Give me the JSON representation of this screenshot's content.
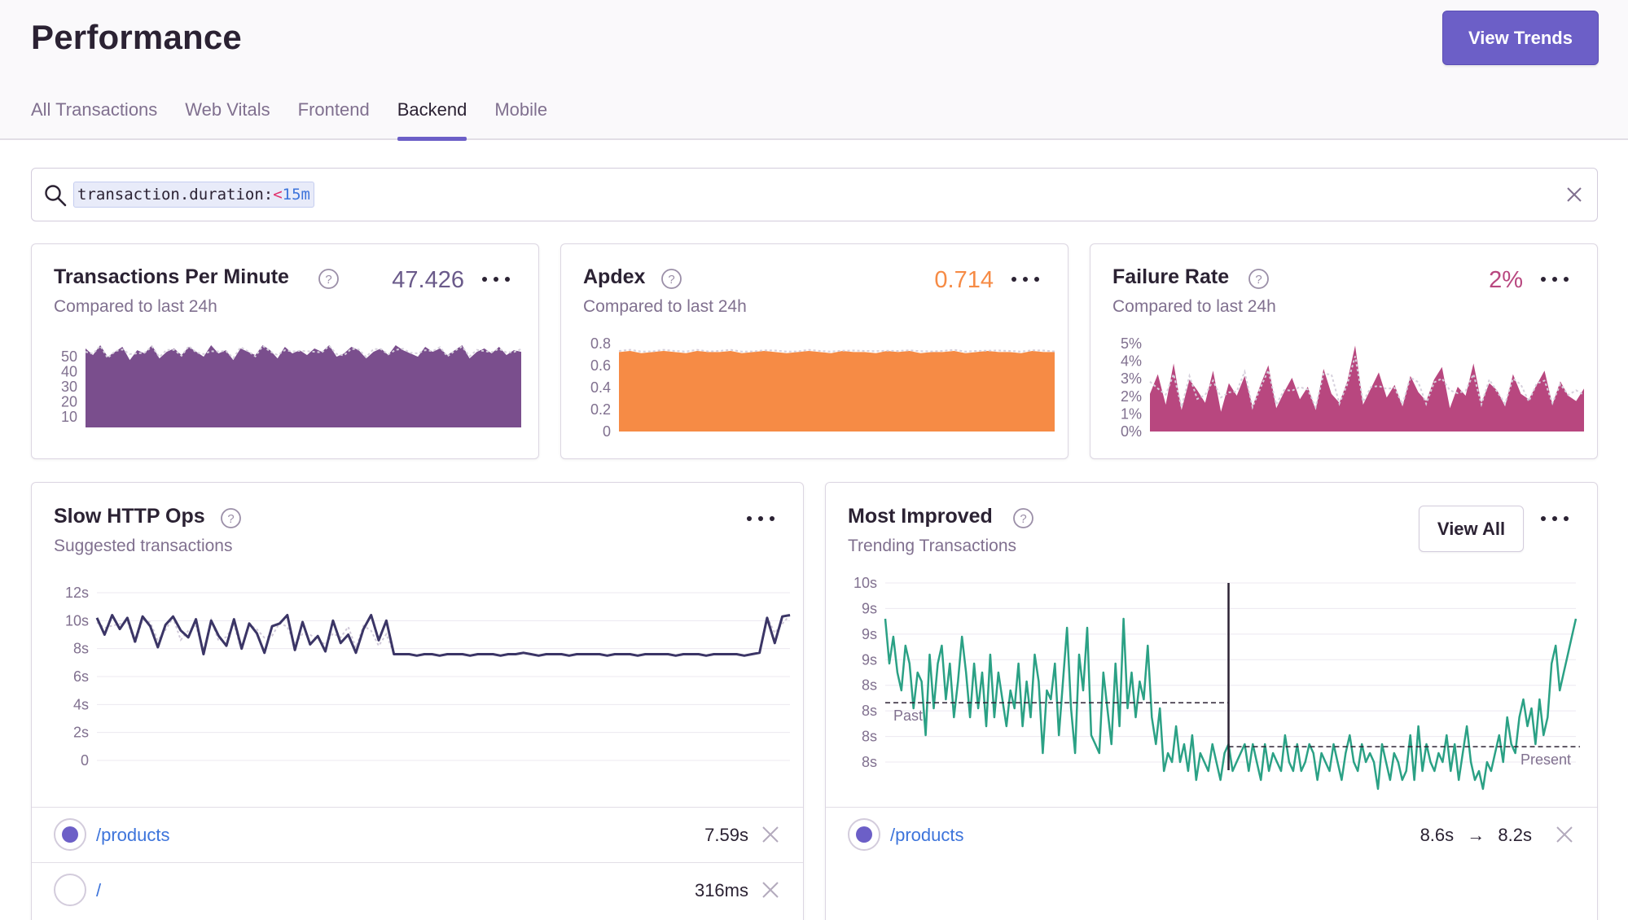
{
  "header": {
    "title": "Performance",
    "view_trends_label": "View Trends"
  },
  "tabs": [
    {
      "label": "All Transactions",
      "active": false
    },
    {
      "label": "Web Vitals",
      "active": false
    },
    {
      "label": "Frontend",
      "active": false
    },
    {
      "label": "Backend",
      "active": true
    },
    {
      "label": "Mobile",
      "active": false
    }
  ],
  "search": {
    "token_key": "transaction.duration:",
    "token_op": "<",
    "token_value": "15m"
  },
  "colors": {
    "accent": "#6c5fc7",
    "tpm": "#7a4e8d",
    "apdex": "#f68b45",
    "failure": "#b8477f",
    "slow": "#3b3566",
    "improved": "#2ba185",
    "link": "#3d74db"
  },
  "widgets": {
    "tpm": {
      "title": "Transactions Per Minute",
      "subtitle": "Compared to last 24h",
      "value": "47.426"
    },
    "apdex": {
      "title": "Apdex",
      "subtitle": "Compared to last 24h",
      "value": "0.714"
    },
    "failure": {
      "title": "Failure Rate",
      "subtitle": "Compared to last 24h",
      "value": "2%"
    },
    "slow_http": {
      "title": "Slow HTTP Ops",
      "subtitle": "Suggested transactions",
      "rows": [
        {
          "name": "/products",
          "value": "7.59s",
          "selected": true
        },
        {
          "name": "/",
          "value": "316ms",
          "selected": false
        }
      ]
    },
    "most_improved": {
      "title": "Most Improved",
      "subtitle": "Trending Transactions",
      "view_all_label": "View All",
      "rows": [
        {
          "name": "/products",
          "before": "8.6s",
          "arrow": "→",
          "after": "8.2s",
          "selected": true
        }
      ]
    }
  },
  "chart_data": [
    {
      "type": "area",
      "ylim": [
        0,
        50
      ],
      "yticks": [
        "50",
        "40",
        "30",
        "20",
        "10"
      ],
      "series": [
        {
          "values": [
            48,
            44,
            50,
            43,
            46,
            49,
            41,
            47,
            45,
            50,
            42,
            46,
            48,
            44,
            49,
            46,
            43,
            50,
            45,
            47,
            41,
            48,
            46,
            44,
            50,
            47,
            42,
            49,
            45,
            47,
            44,
            48,
            46,
            50,
            43,
            45,
            49,
            47,
            42,
            46,
            48,
            44,
            50,
            47,
            45,
            43,
            49,
            46,
            48,
            44,
            47,
            50,
            42,
            46,
            48,
            45,
            49,
            44,
            47,
            46
          ]
        }
      ]
    },
    {
      "type": "area",
      "ylim": [
        0,
        0.8
      ],
      "yticks": [
        "0.8",
        "0.6",
        "0.4",
        "0.2",
        "0"
      ],
      "series": [
        {
          "values": [
            0.71,
            0.72,
            0.7,
            0.71,
            0.72,
            0.71,
            0.7,
            0.72,
            0.71,
            0.71,
            0.72,
            0.7,
            0.71,
            0.72,
            0.71,
            0.7,
            0.71,
            0.72,
            0.71,
            0.7,
            0.72,
            0.71,
            0.71,
            0.7,
            0.72,
            0.71,
            0.72,
            0.7,
            0.71,
            0.71,
            0.72,
            0.7,
            0.71,
            0.72,
            0.71,
            0.71,
            0.7,
            0.72,
            0.71,
            0.71
          ]
        }
      ]
    },
    {
      "type": "area",
      "ylim": [
        0,
        5
      ],
      "yticks": [
        "5%",
        "4%",
        "3%",
        "2%",
        "1%",
        "0%"
      ],
      "series": [
        {
          "values": [
            2.1,
            3.2,
            1.5,
            3.8,
            1.2,
            2.9,
            2.3,
            1.6,
            3.4,
            1.1,
            2.7,
            2.0,
            3.1,
            1.4,
            2.6,
            3.7,
            1.3,
            2.2,
            3.0,
            1.8,
            2.5,
            1.2,
            3.5,
            2.1,
            1.6,
            2.8,
            4.8,
            1.5,
            2.4,
            3.3,
            1.9,
            2.6,
            1.4,
            3.1,
            2.2,
            1.7,
            2.9,
            3.6,
            1.3,
            2.5,
            2.0,
            3.8,
            1.6,
            2.7,
            2.3,
            1.4,
            3.2,
            2.1,
            1.8,
            2.6,
            3.4,
            1.5,
            2.8,
            2.0,
            1.7,
            2.4
          ]
        }
      ]
    },
    {
      "type": "line",
      "ylim": [
        0,
        12
      ],
      "yticks": [
        "12s",
        "10s",
        "8s",
        "6s",
        "4s",
        "2s",
        "0"
      ],
      "series": [
        {
          "values": [
            10.2,
            9.0,
            10.4,
            9.4,
            10.2,
            8.5,
            10.3,
            9.6,
            8.1,
            9.7,
            10.3,
            9.3,
            8.8,
            10.1,
            7.6,
            10.0,
            8.9,
            8.2,
            10.1,
            8.0,
            9.8,
            9.1,
            7.7,
            9.6,
            9.8,
            10.4,
            7.9,
            9.9,
            8.3,
            8.9,
            7.8,
            10.0,
            8.4,
            9.0,
            7.7,
            9.4,
            10.4,
            8.6,
            10.0,
            7.6,
            7.6,
            7.6,
            7.5,
            7.6,
            7.6,
            7.5,
            7.6,
            7.6,
            7.6,
            7.5,
            7.6,
            7.6,
            7.6,
            7.5,
            7.6,
            7.6,
            7.7,
            7.6,
            7.5,
            7.6,
            7.6,
            7.6,
            7.5,
            7.6,
            7.6,
            7.6,
            7.6,
            7.5,
            7.6,
            7.6,
            7.6,
            7.5,
            7.6,
            7.6,
            7.6,
            7.6,
            7.5,
            7.6,
            7.6,
            7.6,
            7.5,
            7.6,
            7.6,
            7.6,
            7.6,
            7.5,
            7.6,
            7.7,
            10.2,
            8.4,
            10.3,
            10.4
          ]
        }
      ]
    },
    {
      "type": "line",
      "ylim": [
        8,
        10
      ],
      "yticks": [
        "10s",
        "9s",
        "9s",
        "9s",
        "8s",
        "8s",
        "8s",
        "8s"
      ],
      "annotations": [
        "Past",
        "Present"
      ],
      "series": [
        {
          "values": [
            9.6,
            9.1,
            9.4,
            9.0,
            8.8,
            9.3,
            9.1,
            8.6,
            9.0,
            8.9,
            8.3,
            9.2,
            8.6,
            9.1,
            9.3,
            8.7,
            9.1,
            8.5,
            8.9,
            9.4,
            9.0,
            8.5,
            9.1,
            8.6,
            9.0,
            8.4,
            9.2,
            8.5,
            9.0,
            8.7,
            8.4,
            8.8,
            8.6,
            9.1,
            8.4,
            8.9,
            8.5,
            9.2,
            8.9,
            8.1,
            8.8,
            8.7,
            9.1,
            8.3,
            8.9,
            9.5,
            8.6,
            8.1,
            9.2,
            8.8,
            9.5,
            8.3,
            8.2,
            8.1,
            9.0,
            8.6,
            8.2,
            9.1,
            8.4,
            9.6,
            8.6,
            9.0,
            8.5,
            8.9,
            8.7,
            9.3,
            8.5,
            8.2,
            8.6,
            7.9,
            8.1,
            8.0,
            8.4,
            8.0,
            8.2,
            7.9,
            8.3,
            7.8,
            8.1,
            8.0,
            7.9,
            8.2,
            8.0,
            7.8,
            8.1,
            8.2,
            7.9,
            8.0,
            8.1,
            8.2,
            7.9,
            8.2,
            8.0,
            7.8,
            8.2,
            7.9,
            8.1,
            8.0,
            7.9,
            8.3,
            8.0,
            7.9,
            8.2,
            7.9,
            8.0,
            8.2,
            8.1,
            7.8,
            8.1,
            8.0,
            7.9,
            8.2,
            8.0,
            7.8,
            8.1,
            8.3,
            8.0,
            7.9,
            8.2,
            8.0,
            8.1,
            8.0,
            7.7,
            8.2,
            8.0,
            7.8,
            8.1,
            8.0,
            7.8,
            7.9,
            8.3,
            7.8,
            8.4,
            7.9,
            8.2,
            8.0,
            7.9,
            8.1,
            8.0,
            8.3,
            7.9,
            8.2,
            7.8,
            8.1,
            8.4,
            8.0,
            7.8,
            7.9,
            7.7,
            8.0,
            7.9,
            8.1,
            8.3,
            8.0,
            8.5,
            8.2,
            8.1,
            8.5,
            8.7,
            8.4,
            8.6,
            8.2,
            8.7,
            8.3,
            8.5,
            9.1,
            9.3,
            8.8,
            9.0,
            9.2,
            9.4,
            9.6
          ]
        }
      ]
    }
  ]
}
